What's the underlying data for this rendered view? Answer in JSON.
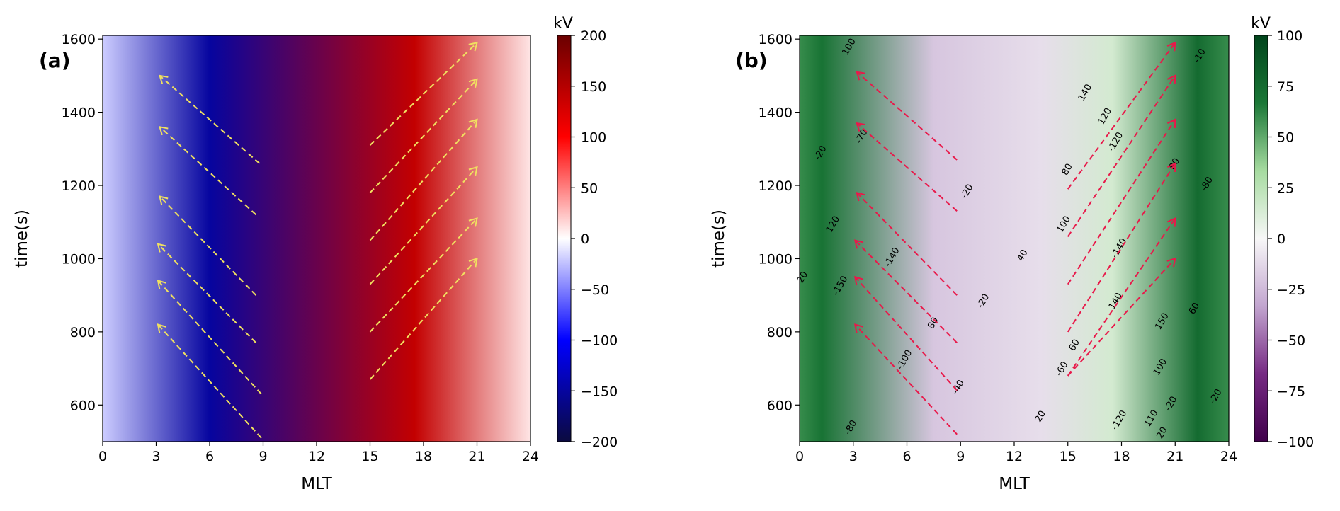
{
  "chart_data": [
    {
      "type": "heatmap",
      "panel_label": "(a)",
      "xlabel": "MLT",
      "ylabel": "time(s)",
      "xlim": [
        0,
        24
      ],
      "ylim": [
        500,
        1610
      ],
      "xticks": [
        0,
        3,
        6,
        9,
        12,
        15,
        18,
        21,
        24
      ],
      "yticks": [
        600,
        800,
        1000,
        1200,
        1400,
        1600
      ],
      "colorbar": {
        "unit": "kV",
        "min": -200,
        "max": 200,
        "ticks": [
          -200,
          -150,
          -100,
          -50,
          0,
          50,
          100,
          150,
          200
        ],
        "colormap": [
          "#0b0a3f",
          "#0000ff",
          "#ffffff",
          "#ff0000",
          "#6a0000"
        ]
      },
      "field_regions": [
        {
          "mlt_start": 1,
          "mlt_end": 11,
          "value": -150,
          "note": "negative potential cell"
        },
        {
          "mlt_start": 12,
          "mlt_end": 23,
          "value": 140,
          "note": "positive potential cell"
        }
      ],
      "arrows_color": "#f0e060",
      "arrows": [
        {
          "from": [
            8.8,
            1260
          ],
          "to": [
            3.2,
            1500
          ]
        },
        {
          "from": [
            8.6,
            1120
          ],
          "to": [
            3.2,
            1360
          ]
        },
        {
          "from": [
            8.6,
            900
          ],
          "to": [
            3.2,
            1170
          ]
        },
        {
          "from": [
            8.6,
            770
          ],
          "to": [
            3.1,
            1040
          ]
        },
        {
          "from": [
            8.9,
            630
          ],
          "to": [
            3.1,
            940
          ]
        },
        {
          "from": [
            8.9,
            510
          ],
          "to": [
            3.1,
            820
          ]
        },
        {
          "from": [
            15.0,
            1310
          ],
          "to": [
            21.0,
            1590
          ]
        },
        {
          "from": [
            15.0,
            1180
          ],
          "to": [
            21.0,
            1490
          ]
        },
        {
          "from": [
            15.0,
            1050
          ],
          "to": [
            21.0,
            1380
          ]
        },
        {
          "from": [
            15.0,
            930
          ],
          "to": [
            21.0,
            1250
          ]
        },
        {
          "from": [
            15.0,
            800
          ],
          "to": [
            21.0,
            1110
          ]
        },
        {
          "from": [
            15.0,
            670
          ],
          "to": [
            21.0,
            1000
          ]
        }
      ]
    },
    {
      "type": "heatmap",
      "panel_label": "(b)",
      "xlabel": "MLT",
      "ylabel": "time(s)",
      "xlim": [
        0,
        24
      ],
      "ylim": [
        500,
        1610
      ],
      "xticks": [
        0,
        3,
        6,
        9,
        12,
        15,
        18,
        21,
        24
      ],
      "yticks": [
        600,
        800,
        1000,
        1200,
        1400,
        1600
      ],
      "colorbar": {
        "unit": "kV",
        "min": -100,
        "max": 100,
        "ticks": [
          -100,
          -75,
          -50,
          -25,
          0,
          25,
          50,
          75,
          100
        ],
        "colormap": [
          "#40004b",
          "#762a83",
          "#c2a5cf",
          "#f7f7f7",
          "#a6dba0",
          "#1b7837",
          "#00441b"
        ]
      },
      "field_regions": [
        {
          "mlt_start": 0,
          "mlt_end": 2.5,
          "value": 70,
          "note": "green band"
        },
        {
          "mlt_start": 3,
          "mlt_end": 12,
          "value": -20,
          "note": "light purple"
        },
        {
          "mlt_start": 12,
          "mlt_end": 15,
          "value": -10,
          "note": "light purple"
        },
        {
          "mlt_start": 15,
          "mlt_end": 20,
          "value": 15,
          "note": "light green"
        },
        {
          "mlt_start": 20.5,
          "mlt_end": 24,
          "value": 75,
          "note": "dark green band"
        }
      ],
      "contour_labels": [
        {
          "text": "100",
          "mlt": 2.9,
          "t": 1575
        },
        {
          "text": "-70",
          "mlt": 3.6,
          "t": 1330
        },
        {
          "text": "-20",
          "mlt": 1.3,
          "t": 1285
        },
        {
          "text": "20",
          "mlt": 0.3,
          "t": 945
        },
        {
          "text": "120",
          "mlt": 2.0,
          "t": 1090
        },
        {
          "text": "-150",
          "mlt": 2.4,
          "t": 922
        },
        {
          "text": "-140",
          "mlt": 5.3,
          "t": 1000
        },
        {
          "text": "-100",
          "mlt": 6.0,
          "t": 720
        },
        {
          "text": "80",
          "mlt": 7.6,
          "t": 820
        },
        {
          "text": "-80",
          "mlt": 3.0,
          "t": 535
        },
        {
          "text": "-20",
          "mlt": 9.5,
          "t": 1180
        },
        {
          "text": "-20",
          "mlt": 10.4,
          "t": 880
        },
        {
          "text": "-40",
          "mlt": 9.0,
          "t": 645
        },
        {
          "text": "40",
          "mlt": 12.6,
          "t": 1005
        },
        {
          "text": "20",
          "mlt": 13.6,
          "t": 565
        },
        {
          "text": "140",
          "mlt": 16.1,
          "t": 1450
        },
        {
          "text": "120",
          "mlt": 17.2,
          "t": 1385
        },
        {
          "text": "-120",
          "mlt": 17.8,
          "t": 1315
        },
        {
          "text": "80",
          "mlt": 15.1,
          "t": 1240
        },
        {
          "text": "100",
          "mlt": 14.9,
          "t": 1090
        },
        {
          "text": "-140",
          "mlt": 18.0,
          "t": 1025
        },
        {
          "text": "140",
          "mlt": 17.8,
          "t": 880
        },
        {
          "text": "60",
          "mlt": 15.5,
          "t": 760
        },
        {
          "text": "-60",
          "mlt": 14.8,
          "t": 695
        },
        {
          "text": "-120",
          "mlt": 18.0,
          "t": 555
        },
        {
          "text": "150",
          "mlt": 20.4,
          "t": 825
        },
        {
          "text": "110",
          "mlt": 19.8,
          "t": 560
        },
        {
          "text": "100",
          "mlt": 20.3,
          "t": 700
        },
        {
          "text": "20",
          "mlt": 20.4,
          "t": 520
        },
        {
          "text": "-20",
          "mlt": 20.9,
          "t": 600
        },
        {
          "text": "60",
          "mlt": 22.2,
          "t": 860
        },
        {
          "text": "80",
          "mlt": 21.1,
          "t": 1255
        },
        {
          "text": "-20",
          "mlt": 23.4,
          "t": 620
        },
        {
          "text": "-10",
          "mlt": 22.5,
          "t": 1550
        },
        {
          "text": "-80",
          "mlt": 22.9,
          "t": 1200
        }
      ],
      "arrows_color": "#e8194a",
      "arrows": [
        {
          "from": [
            8.8,
            1270
          ],
          "to": [
            3.2,
            1510
          ]
        },
        {
          "from": [
            8.8,
            1130
          ],
          "to": [
            3.2,
            1370
          ]
        },
        {
          "from": [
            8.8,
            900
          ],
          "to": [
            3.2,
            1180
          ]
        },
        {
          "from": [
            8.8,
            770
          ],
          "to": [
            3.1,
            1050
          ]
        },
        {
          "from": [
            8.8,
            640
          ],
          "to": [
            3.1,
            950
          ]
        },
        {
          "from": [
            8.8,
            520
          ],
          "to": [
            3.1,
            820
          ]
        },
        {
          "from": [
            15.0,
            1190
          ],
          "to": [
            21.0,
            1590
          ]
        },
        {
          "from": [
            15.0,
            1060
          ],
          "to": [
            21.0,
            1500
          ]
        },
        {
          "from": [
            15.0,
            930
          ],
          "to": [
            21.0,
            1380
          ]
        },
        {
          "from": [
            15.0,
            800
          ],
          "to": [
            21.0,
            1260
          ]
        },
        {
          "from": [
            15.0,
            680
          ],
          "to": [
            21.0,
            1110
          ]
        },
        {
          "from": [
            15.0,
            680
          ],
          "to": [
            21.0,
            1000
          ]
        }
      ]
    }
  ]
}
